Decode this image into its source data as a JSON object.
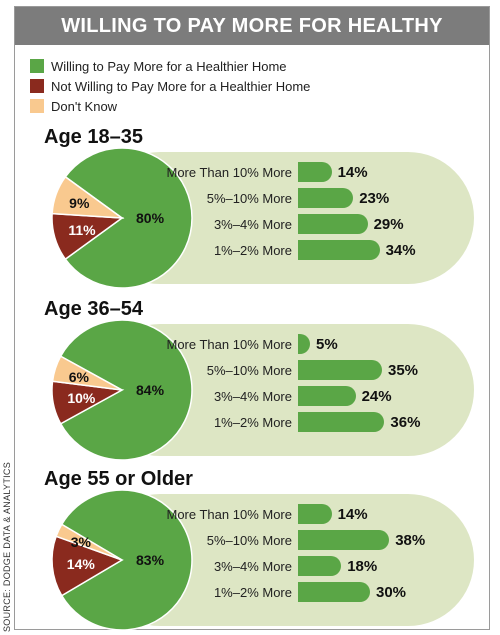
{
  "title": "WILLING TO PAY MORE FOR HEALTHY",
  "legend": [
    {
      "label": "Willing to Pay More for a Healthier Home",
      "color": "#5aa646"
    },
    {
      "label": "Not Willing to Pay More for a Healthier Home",
      "color": "#8a2a1e"
    },
    {
      "label": "Don't Know",
      "color": "#f9c98f"
    }
  ],
  "source": "SOURCE: DODGE DATA & ANALYTICS",
  "chart_data": [
    {
      "type": "pie",
      "title": "Age 18–35",
      "slices": [
        {
          "name": "Willing to Pay More for a Healthier Home",
          "value": 80,
          "label": "80%"
        },
        {
          "name": "Not Willing to Pay More for a Healthier Home",
          "value": 11,
          "label": "11%"
        },
        {
          "name": "Don't Know",
          "value": 9,
          "label": "9%"
        }
      ],
      "bars": {
        "type": "bar",
        "categories": [
          "More Than 10% More",
          "5%–10% More",
          "3%–4% More",
          "1%–2% More"
        ],
        "values": [
          14,
          23,
          29,
          34
        ],
        "labels": [
          "14%",
          "23%",
          "29%",
          "34%"
        ]
      }
    },
    {
      "type": "pie",
      "title": "Age 36–54",
      "slices": [
        {
          "name": "Willing to Pay More for a Healthier Home",
          "value": 84,
          "label": "84%"
        },
        {
          "name": "Not Willing to Pay More for a Healthier Home",
          "value": 10,
          "label": "10%"
        },
        {
          "name": "Don't Know",
          "value": 6,
          "label": "6%"
        }
      ],
      "bars": {
        "type": "bar",
        "categories": [
          "More Than 10% More",
          "5%–10% More",
          "3%–4% More",
          "1%–2% More"
        ],
        "values": [
          5,
          35,
          24,
          36
        ],
        "labels": [
          "5%",
          "35%",
          "24%",
          "36%"
        ]
      }
    },
    {
      "type": "pie",
      "title": "Age 55 or Older",
      "slices": [
        {
          "name": "Willing to Pay More for a Healthier Home",
          "value": 83,
          "label": "83%"
        },
        {
          "name": "Not Willing to Pay More for a Healthier Home",
          "value": 14,
          "label": "14%"
        },
        {
          "name": "Don't Know",
          "value": 3,
          "label": "3%"
        }
      ],
      "bars": {
        "type": "bar",
        "categories": [
          "More Than 10% More",
          "5%–10% More",
          "3%–4% More",
          "1%–2% More"
        ],
        "values": [
          14,
          38,
          18,
          30
        ],
        "labels": [
          "14%",
          "38%",
          "18%",
          "30%"
        ]
      }
    }
  ]
}
